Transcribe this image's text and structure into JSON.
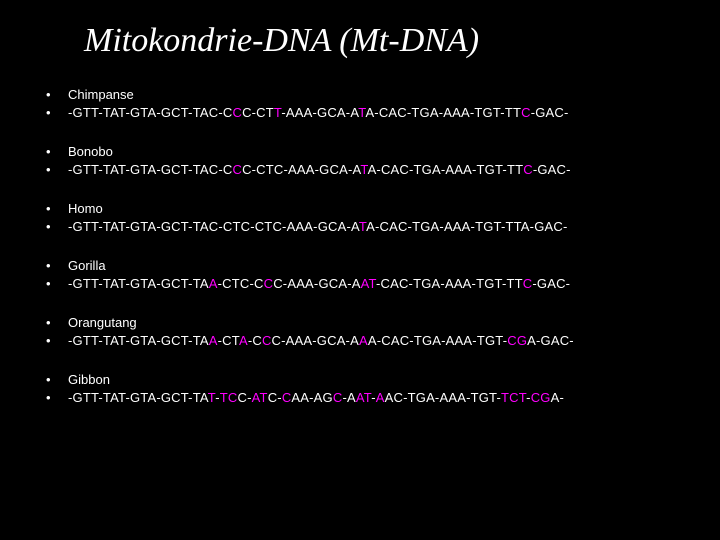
{
  "title": "Mitokondrie-DNA (Mt-DNA)",
  "colors": {
    "background": "#000000",
    "text": "#ffffff",
    "highlight": "#ff00ff"
  },
  "fonts": {
    "title_family": "Times New Roman",
    "title_style": "italic",
    "title_size_pt": 34,
    "body_family": "Arial",
    "body_size_pt": 13
  },
  "species": [
    {
      "name": "Chimpanse",
      "sequence": [
        {
          "t": "-GTT-TAT-GTA-GCT-TAC-C",
          "hl": false
        },
        {
          "t": "C",
          "hl": true
        },
        {
          "t": "C-CT",
          "hl": false
        },
        {
          "t": "T",
          "hl": true
        },
        {
          "t": "-AAA-GCA-A",
          "hl": false
        },
        {
          "t": "T",
          "hl": true
        },
        {
          "t": "A-CAC-TGA-AAA-TGT-TT",
          "hl": false
        },
        {
          "t": "C",
          "hl": true
        },
        {
          "t": "-GAC-",
          "hl": false
        }
      ]
    },
    {
      "name": "Bonobo",
      "sequence": [
        {
          "t": "-GTT-TAT-GTA-GCT-TAC-C",
          "hl": false
        },
        {
          "t": "C",
          "hl": true
        },
        {
          "t": "C-CTC-AAA-GCA-A",
          "hl": false
        },
        {
          "t": "T",
          "hl": true
        },
        {
          "t": "A-CAC-TGA-AAA-TGT-TT",
          "hl": false
        },
        {
          "t": "C",
          "hl": true
        },
        {
          "t": "-GAC-",
          "hl": false
        }
      ]
    },
    {
      "name": "Homo",
      "sequence": [
        {
          "t": "-GTT-TAT-GTA-GCT-TAC-CTC-CTC-AAA-GCA-A",
          "hl": false
        },
        {
          "t": "T",
          "hl": true
        },
        {
          "t": "A-CAC-TGA-AAA-TGT-TTA-GAC-",
          "hl": false
        }
      ]
    },
    {
      "name": "Gorilla",
      "sequence": [
        {
          "t": "-GTT-TAT-GTA-GCT-TA",
          "hl": false
        },
        {
          "t": "A",
          "hl": true
        },
        {
          "t": "-CTC-C",
          "hl": false
        },
        {
          "t": "C",
          "hl": true
        },
        {
          "t": "C-AAA-GCA-A",
          "hl": false
        },
        {
          "t": "AT",
          "hl": true
        },
        {
          "t": "-CAC-TGA-AAA-TGT-TT",
          "hl": false
        },
        {
          "t": "C",
          "hl": true
        },
        {
          "t": "-GAC-",
          "hl": false
        }
      ]
    },
    {
      "name": "Orangutang",
      "sequence": [
        {
          "t": "-GTT-TAT-GTA-GCT-TA",
          "hl": false
        },
        {
          "t": "A",
          "hl": true
        },
        {
          "t": "-CT",
          "hl": false
        },
        {
          "t": "A",
          "hl": true
        },
        {
          "t": "-C",
          "hl": false
        },
        {
          "t": "C",
          "hl": true
        },
        {
          "t": "C-AAA-GCA-A",
          "hl": false
        },
        {
          "t": "A",
          "hl": true
        },
        {
          "t": "A-CAC-TGA-AAA-TGT-",
          "hl": false
        },
        {
          "t": "CG",
          "hl": true
        },
        {
          "t": "A-GAC-",
          "hl": false
        }
      ]
    },
    {
      "name": "Gibbon",
      "sequence": [
        {
          "t": "-GTT-TAT-GTA-GCT-TA",
          "hl": false
        },
        {
          "t": "T",
          "hl": true
        },
        {
          "t": "-",
          "hl": false
        },
        {
          "t": "TC",
          "hl": true
        },
        {
          "t": "C-",
          "hl": false
        },
        {
          "t": "AT",
          "hl": true
        },
        {
          "t": "C-",
          "hl": false
        },
        {
          "t": "C",
          "hl": true
        },
        {
          "t": "AA-AG",
          "hl": false
        },
        {
          "t": "C",
          "hl": true
        },
        {
          "t": "-A",
          "hl": false
        },
        {
          "t": "AT",
          "hl": true
        },
        {
          "t": "-",
          "hl": false
        },
        {
          "t": "A",
          "hl": true
        },
        {
          "t": "AC-TGA-AAA-TGT-",
          "hl": false
        },
        {
          "t": "TCT",
          "hl": true
        },
        {
          "t": "-",
          "hl": false
        },
        {
          "t": "CG",
          "hl": true
        },
        {
          "t": "A-",
          "hl": false
        }
      ]
    }
  ]
}
